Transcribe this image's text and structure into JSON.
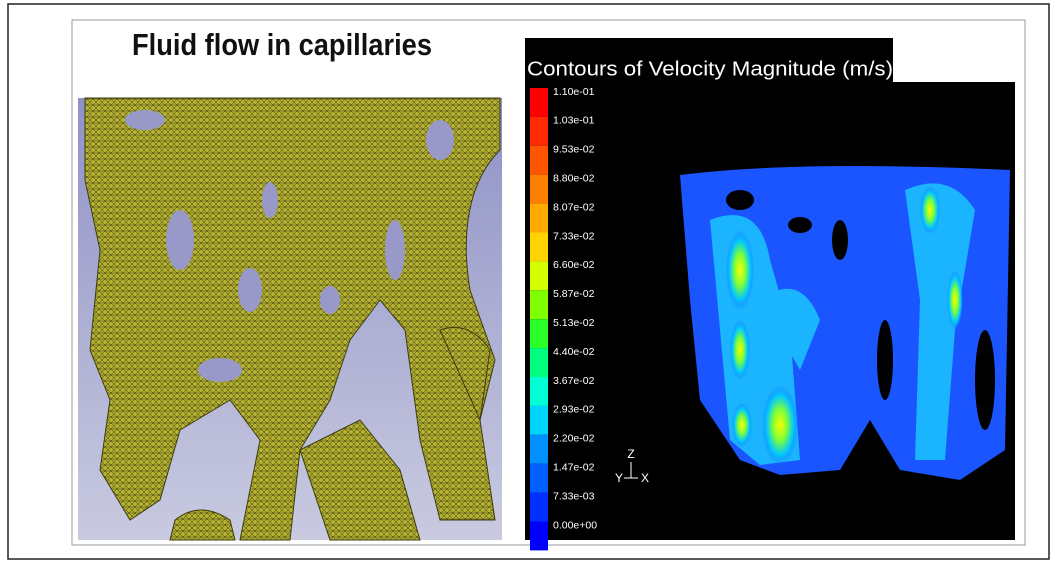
{
  "header": {
    "title": "Fluid flow in capillaries"
  },
  "contour_panel": {
    "title": "Contours of Velocity Magnitude (m/s)",
    "legend": {
      "labels": [
        "1.10e-01",
        "1.03e-01",
        "9.53e-02",
        "8.80e-02",
        "8.07e-02",
        "7.33e-02",
        "6.60e-02",
        "5.87e-02",
        "5.13e-02",
        "4.40e-02",
        "3.67e-02",
        "2.93e-02",
        "2.20e-02",
        "1.47e-02",
        "7.33e-03",
        "0.00e+00"
      ]
    },
    "axes": {
      "z": "Z",
      "y": "Y",
      "x": "X"
    }
  }
}
